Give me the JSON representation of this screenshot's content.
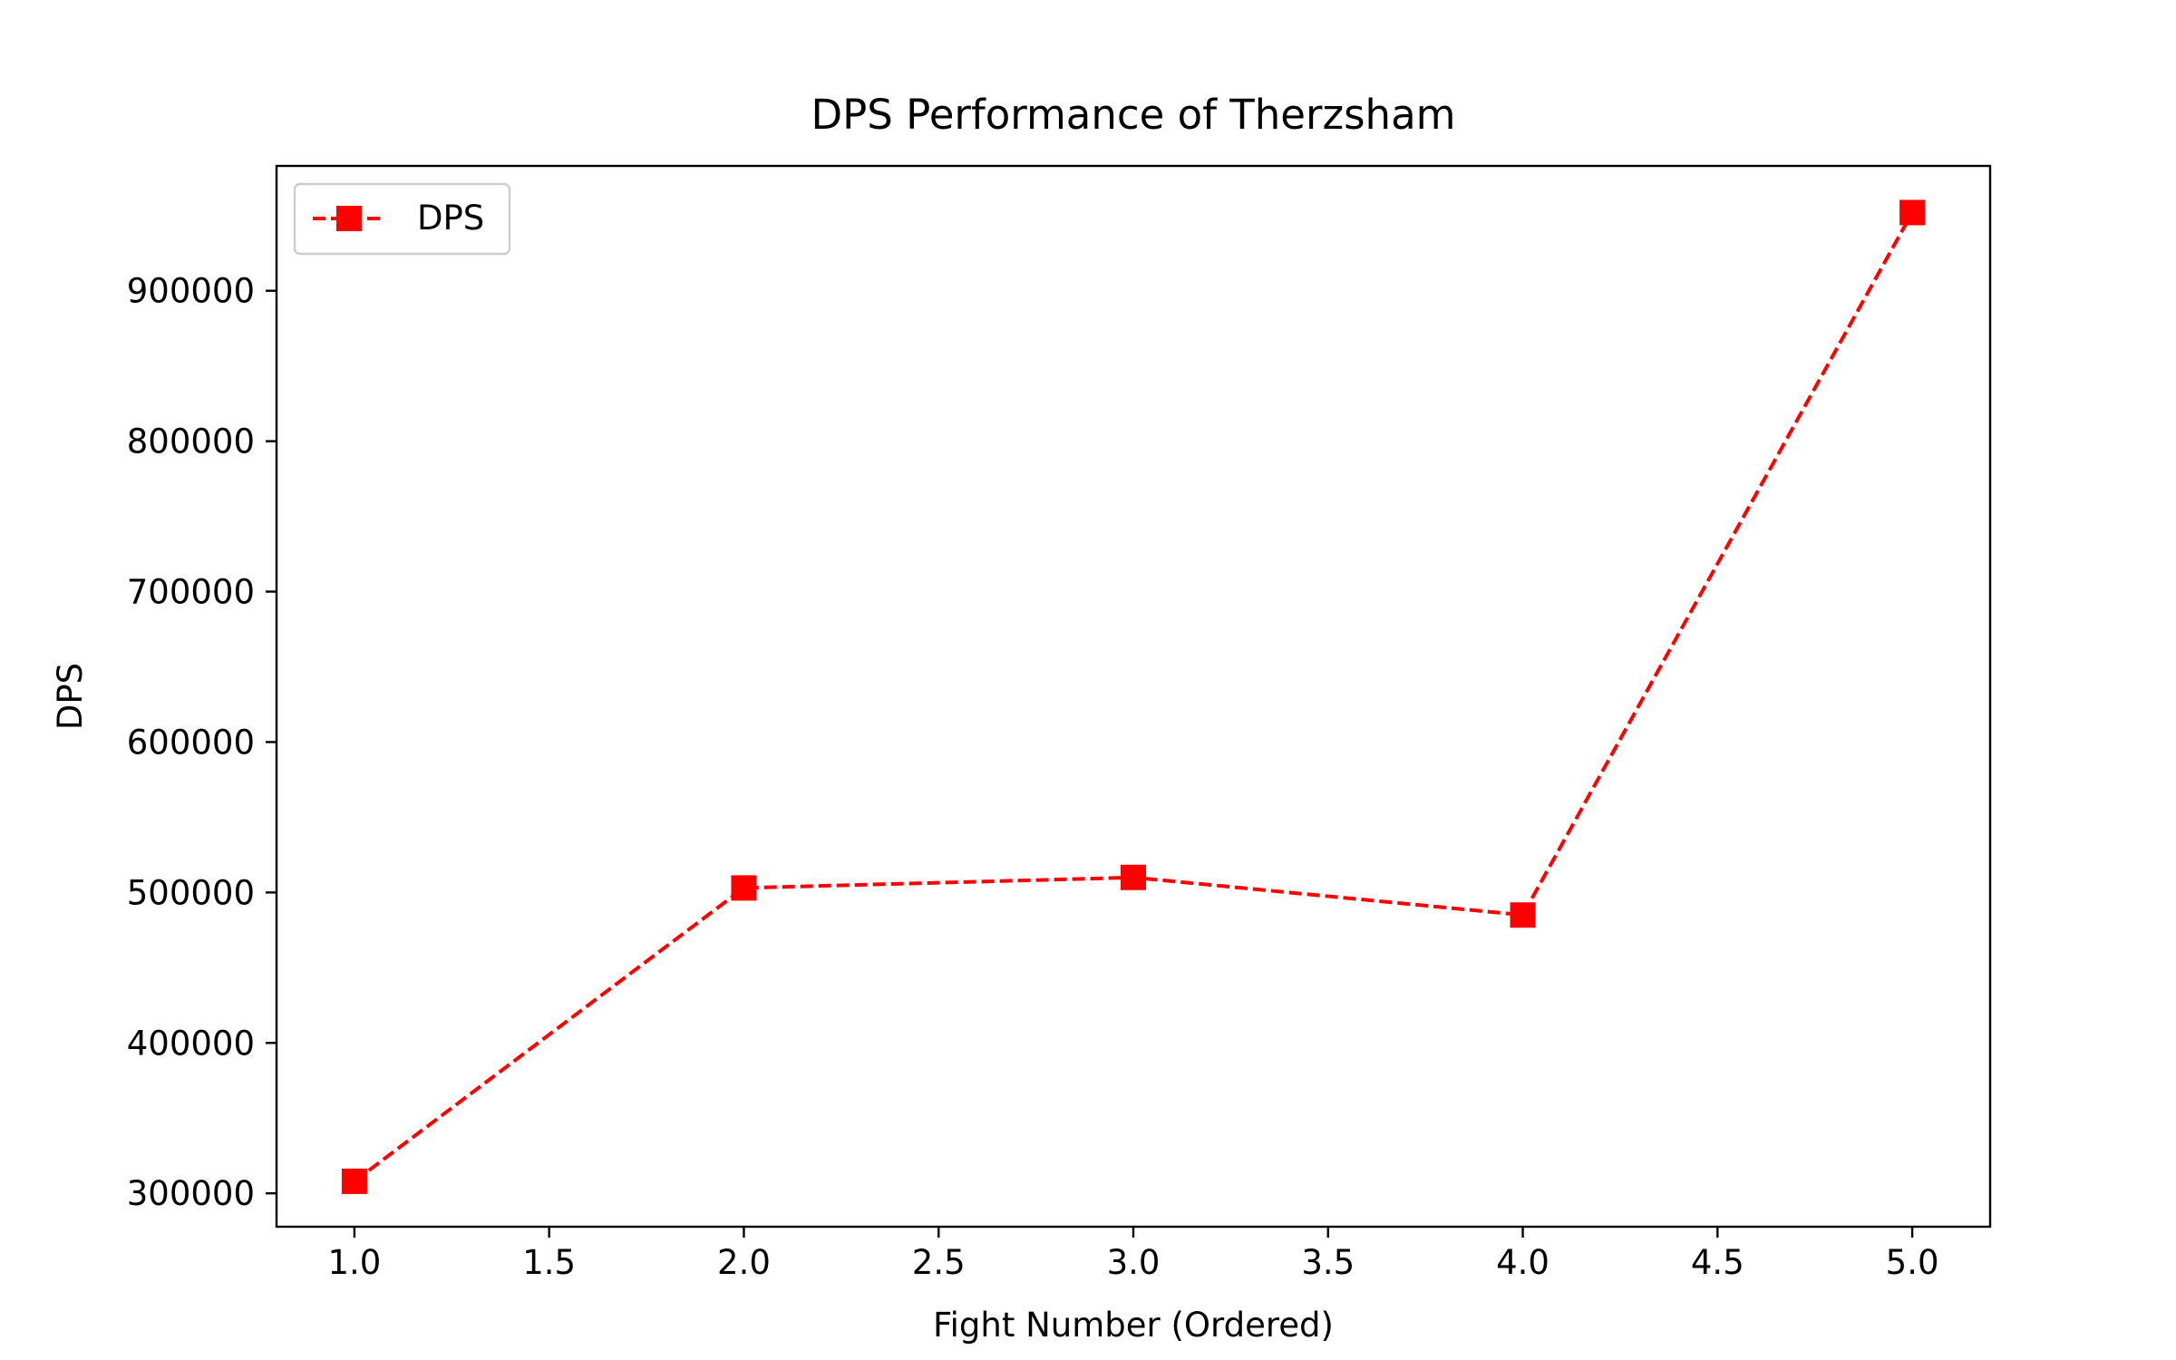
{
  "chart_data": {
    "type": "line",
    "title": "DPS Performance of Therzsham",
    "xlabel": "Fight Number (Ordered)",
    "ylabel": "DPS",
    "x": [
      1.0,
      2.0,
      3.0,
      4.0,
      5.0
    ],
    "series": [
      {
        "name": "DPS",
        "values": [
          308000,
          503000,
          510000,
          485000,
          952000
        ],
        "color": "#ff0000",
        "line_style": "dashed",
        "marker": "square"
      }
    ],
    "xlim": [
      0.8,
      5.2
    ],
    "ylim": [
      277800,
      983000
    ],
    "xticks": [
      1.0,
      1.5,
      2.0,
      2.5,
      3.0,
      3.5,
      4.0,
      4.5,
      5.0
    ],
    "xtick_labels": [
      "1.0",
      "1.5",
      "2.0",
      "2.5",
      "3.0",
      "3.5",
      "4.0",
      "4.5",
      "5.0"
    ],
    "yticks": [
      300000,
      400000,
      500000,
      600000,
      700000,
      800000,
      900000
    ],
    "ytick_labels": [
      "300000",
      "400000",
      "500000",
      "600000",
      "700000",
      "800000",
      "900000"
    ],
    "grid": false,
    "legend_position": "upper-left"
  }
}
